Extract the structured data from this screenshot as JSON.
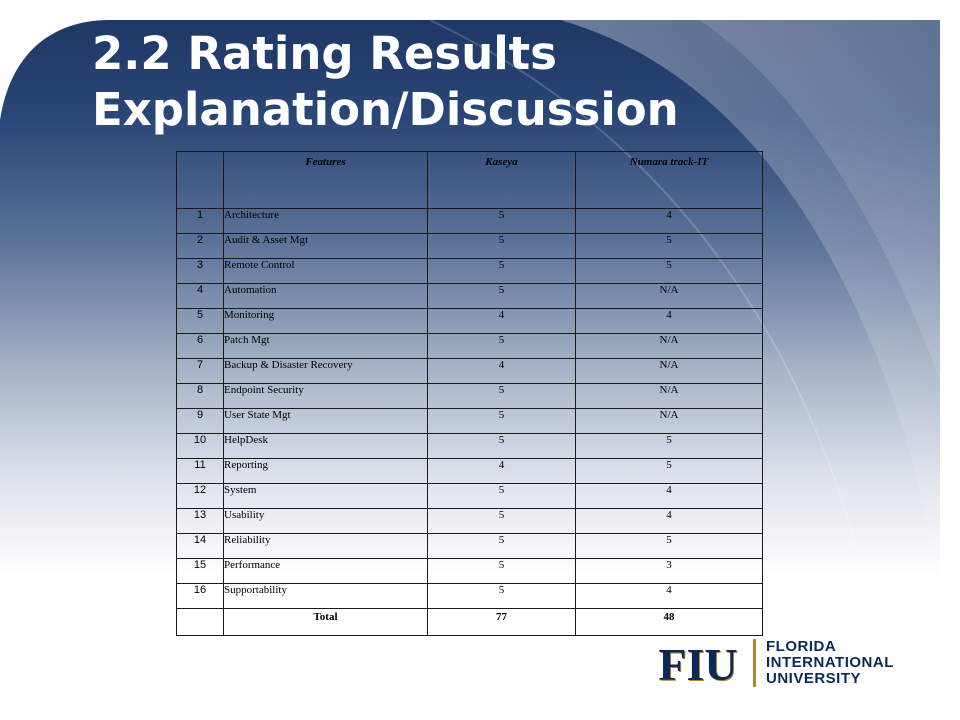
{
  "title": {
    "line1": "2.2 Rating Results",
    "line2": "Explanation/Discussion"
  },
  "table": {
    "headers": [
      "",
      "Features",
      "Kaseya",
      "Numara track-IT"
    ],
    "rows": [
      {
        "num": "1",
        "feature": "Architecture",
        "kaseya": "5",
        "numara": "4"
      },
      {
        "num": "2",
        "feature": "Audit & Asset Mgt",
        "kaseya": "5",
        "numara": "5"
      },
      {
        "num": "3",
        "feature": "Remote Control",
        "kaseya": "5",
        "numara": "5"
      },
      {
        "num": "4",
        "feature": "Automation",
        "kaseya": "5",
        "numara": "N/A"
      },
      {
        "num": "5",
        "feature": "Monitoring",
        "kaseya": "4",
        "numara": "4"
      },
      {
        "num": "6",
        "feature": "Patch Mgt",
        "kaseya": "5",
        "numara": "N/A"
      },
      {
        "num": "7",
        "feature": "Backup & Disaster Recovery",
        "kaseya": "4",
        "numara": "N/A"
      },
      {
        "num": "8",
        "feature": "Endpoint Security",
        "kaseya": "5",
        "numara": "N/A"
      },
      {
        "num": "9",
        "feature": "User State Mgt",
        "kaseya": "5",
        "numara": "N/A"
      },
      {
        "num": "10",
        "feature": "HelpDesk",
        "kaseya": "5",
        "numara": "5"
      },
      {
        "num": "11",
        "feature": "Reporting",
        "kaseya": "4",
        "numara": "5"
      },
      {
        "num": "12",
        "feature": "System",
        "kaseya": "5",
        "numara": "4"
      },
      {
        "num": "13",
        "feature": "Usability",
        "kaseya": "5",
        "numara": "4"
      },
      {
        "num": "14",
        "feature": "Reliability",
        "kaseya": "5",
        "numara": "5"
      },
      {
        "num": "15",
        "feature": "Performance",
        "kaseya": "5",
        "numara": "3"
      },
      {
        "num": "16",
        "feature": "Supportability",
        "kaseya": "5",
        "numara": "4"
      }
    ],
    "total": {
      "label": "Total",
      "kaseya": "77",
      "numara": "48"
    }
  },
  "logo": {
    "mark": "FIU",
    "line1": "FLORIDA",
    "line2": "INTERNATIONAL",
    "line3": "UNIVERSITY"
  },
  "colors": {
    "navy": "#1c3a6b",
    "logo_navy": "#0b2a55",
    "logo_gold": "#b6862c"
  }
}
